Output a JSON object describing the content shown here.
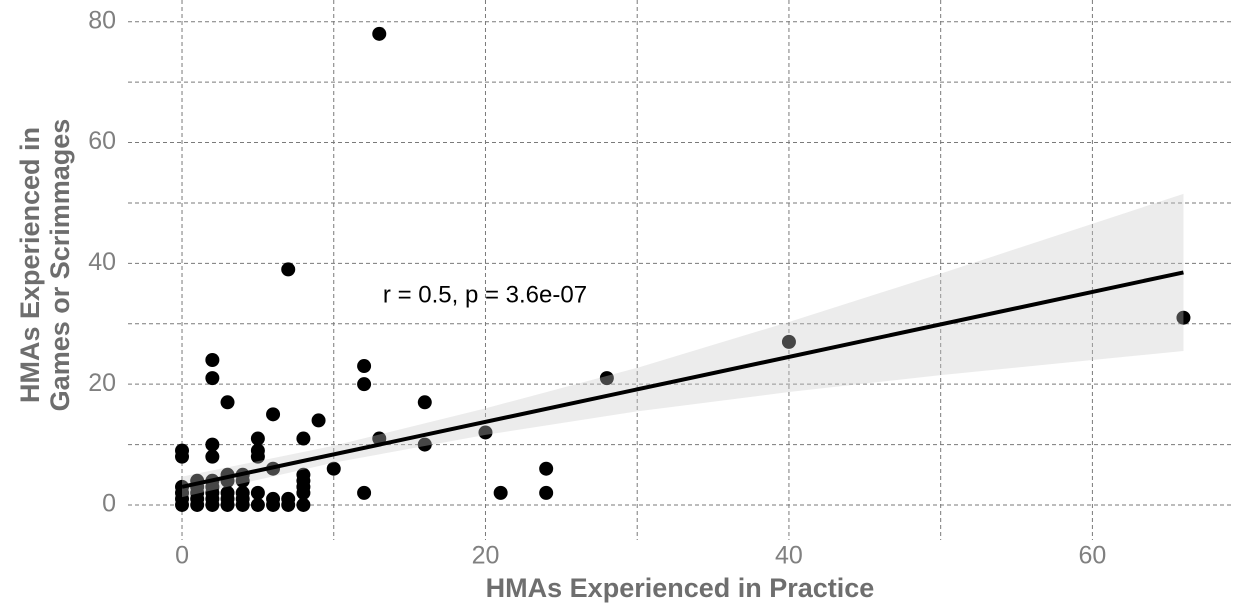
{
  "chart_data": {
    "type": "scatter",
    "xlabel": "HMAs Experienced in Practice",
    "ylabel": [
      "HMAs Experienced in",
      "Games or Scrimmages"
    ],
    "annotation": "r = 0.5, p = 3.6e-07",
    "xlim": [
      -3.56,
      69.2
    ],
    "ylim": [
      -5.8,
      83.6
    ],
    "xticks": [
      0,
      20,
      40,
      60
    ],
    "yticks": [
      0,
      20,
      40,
      60,
      80
    ],
    "xminor": [
      10,
      30,
      50
    ],
    "yminor": [
      10,
      30,
      50,
      70
    ],
    "grid": true,
    "color": "#000000",
    "x": [
      0,
      0,
      0,
      0,
      0,
      0,
      1,
      1,
      1,
      1,
      1,
      2,
      2,
      2,
      2,
      2,
      2,
      2,
      2,
      2,
      3,
      3,
      3,
      3,
      3,
      3,
      4,
      4,
      4,
      4,
      4,
      5,
      5,
      5,
      5,
      5,
      6,
      6,
      6,
      6,
      7,
      7,
      7,
      8,
      8,
      8,
      8,
      8,
      8,
      9,
      10,
      12,
      12,
      12,
      13,
      13,
      16,
      16,
      20,
      21,
      24,
      24,
      28,
      40,
      66
    ],
    "y": [
      0,
      1,
      2,
      3,
      8,
      9,
      0,
      1,
      2,
      3,
      4,
      0,
      1,
      2,
      3,
      4,
      8,
      10,
      21,
      24,
      0,
      1,
      2,
      4,
      5,
      17,
      0,
      1,
      2,
      4,
      5,
      0,
      2,
      8,
      9,
      11,
      0,
      1,
      6,
      15,
      0,
      1,
      39,
      0,
      2,
      3,
      4,
      5,
      11,
      14,
      6,
      2,
      20,
      23,
      11,
      78,
      10,
      17,
      12,
      2,
      2,
      6,
      21,
      27,
      31
    ],
    "fit": {
      "color": "#000000",
      "x": [
        0,
        66
      ],
      "y": [
        3,
        38.5
      ]
    },
    "band": {
      "color": "#c8c8c8",
      "x": [
        0,
        10,
        20,
        30,
        40,
        50,
        66
      ],
      "lower": [
        1.3,
        7.0,
        11.6,
        15.5,
        18.7,
        21.5,
        25.5
      ],
      "upper": [
        4.7,
        9.8,
        16.0,
        22.7,
        30.3,
        38.3,
        51.5
      ]
    }
  }
}
